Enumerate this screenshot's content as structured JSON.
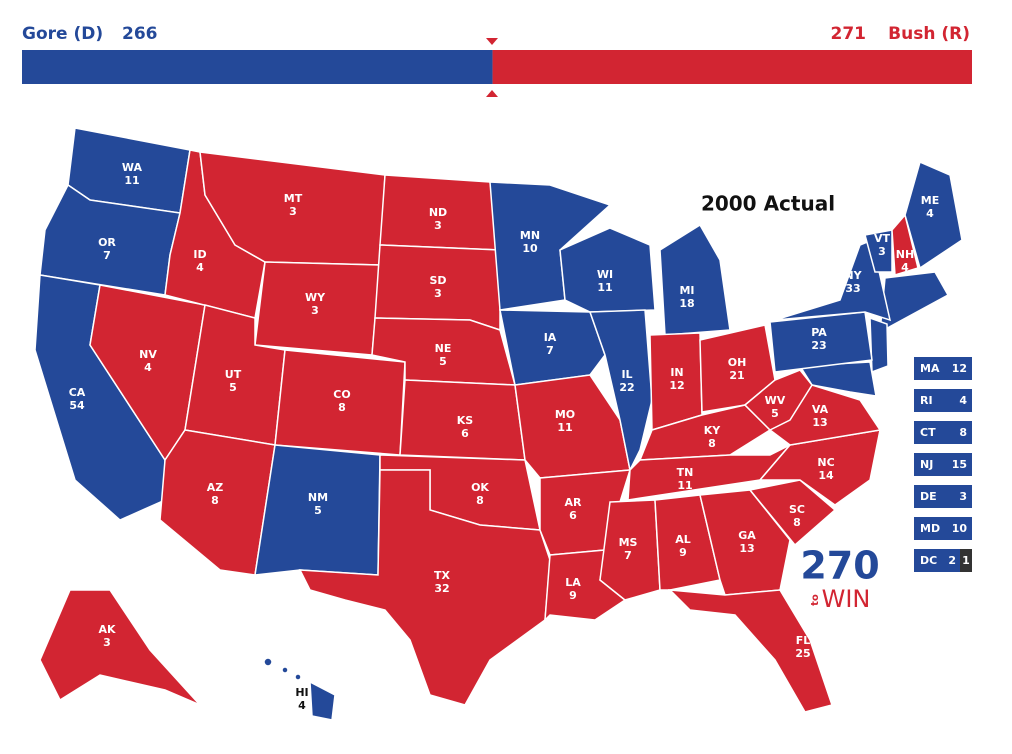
{
  "header": {
    "left_name": "Gore (D)",
    "left_votes": 266,
    "right_votes": 271,
    "right_name": "Bush (R)"
  },
  "colors": {
    "D": "#244999",
    "R": "#d22532"
  },
  "map_title": "2000 Actual",
  "states": [
    {
      "abbr": "WA",
      "votes": 11,
      "party": "D"
    },
    {
      "abbr": "OR",
      "votes": 7,
      "party": "D"
    },
    {
      "abbr": "CA",
      "votes": 54,
      "party": "D"
    },
    {
      "abbr": "NV",
      "votes": 4,
      "party": "R"
    },
    {
      "abbr": "ID",
      "votes": 4,
      "party": "R"
    },
    {
      "abbr": "MT",
      "votes": 3,
      "party": "R"
    },
    {
      "abbr": "WY",
      "votes": 3,
      "party": "R"
    },
    {
      "abbr": "UT",
      "votes": 5,
      "party": "R"
    },
    {
      "abbr": "AZ",
      "votes": 8,
      "party": "R"
    },
    {
      "abbr": "CO",
      "votes": 8,
      "party": "R"
    },
    {
      "abbr": "NM",
      "votes": 5,
      "party": "D"
    },
    {
      "abbr": "ND",
      "votes": 3,
      "party": "R"
    },
    {
      "abbr": "SD",
      "votes": 3,
      "party": "R"
    },
    {
      "abbr": "NE",
      "votes": 5,
      "party": "R"
    },
    {
      "abbr": "KS",
      "votes": 6,
      "party": "R"
    },
    {
      "abbr": "OK",
      "votes": 8,
      "party": "R"
    },
    {
      "abbr": "TX",
      "votes": 32,
      "party": "R"
    },
    {
      "abbr": "MN",
      "votes": 10,
      "party": "D"
    },
    {
      "abbr": "IA",
      "votes": 7,
      "party": "D"
    },
    {
      "abbr": "MO",
      "votes": 11,
      "party": "R"
    },
    {
      "abbr": "AR",
      "votes": 6,
      "party": "R"
    },
    {
      "abbr": "LA",
      "votes": 9,
      "party": "R"
    },
    {
      "abbr": "WI",
      "votes": 11,
      "party": "D"
    },
    {
      "abbr": "IL",
      "votes": 22,
      "party": "D"
    },
    {
      "abbr": "MI",
      "votes": 18,
      "party": "D"
    },
    {
      "abbr": "IN",
      "votes": 12,
      "party": "R"
    },
    {
      "abbr": "OH",
      "votes": 21,
      "party": "R"
    },
    {
      "abbr": "KY",
      "votes": 8,
      "party": "R"
    },
    {
      "abbr": "TN",
      "votes": 11,
      "party": "R"
    },
    {
      "abbr": "MS",
      "votes": 7,
      "party": "R"
    },
    {
      "abbr": "AL",
      "votes": 9,
      "party": "R"
    },
    {
      "abbr": "GA",
      "votes": 13,
      "party": "R"
    },
    {
      "abbr": "FL",
      "votes": 25,
      "party": "R"
    },
    {
      "abbr": "SC",
      "votes": 8,
      "party": "R"
    },
    {
      "abbr": "NC",
      "votes": 14,
      "party": "R"
    },
    {
      "abbr": "VA",
      "votes": 13,
      "party": "R"
    },
    {
      "abbr": "WV",
      "votes": 5,
      "party": "R"
    },
    {
      "abbr": "PA",
      "votes": 23,
      "party": "D"
    },
    {
      "abbr": "NY",
      "votes": 33,
      "party": "D"
    },
    {
      "abbr": "VT",
      "votes": 3,
      "party": "D"
    },
    {
      "abbr": "NH",
      "votes": 4,
      "party": "R"
    },
    {
      "abbr": "ME",
      "votes": 4,
      "party": "D"
    },
    {
      "abbr": "AK",
      "votes": 3,
      "party": "R"
    },
    {
      "abbr": "HI",
      "votes": 4,
      "party": "D"
    }
  ],
  "small_states": [
    {
      "abbr": "MA",
      "votes": 12
    },
    {
      "abbr": "RI",
      "votes": 4
    },
    {
      "abbr": "CT",
      "votes": 8
    },
    {
      "abbr": "NJ",
      "votes": 15
    },
    {
      "abbr": "DE",
      "votes": 3
    },
    {
      "abbr": "MD",
      "votes": 10
    },
    {
      "abbr": "DC",
      "votes": 2,
      "abstain": 1
    }
  ],
  "logo": {
    "number": "270",
    "small": "to",
    "word": "WIN"
  }
}
